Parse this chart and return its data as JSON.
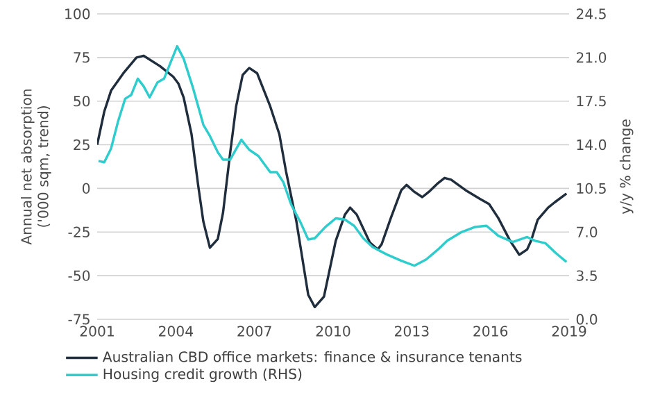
{
  "chart_data": {
    "type": "line",
    "ylabel": "Annual net absorption ('000 sqm, trend)",
    "y2label": "y/y % change",
    "xlim": [
      2001,
      2019
    ],
    "xticks": [
      2001,
      2004,
      2007,
      2010,
      2013,
      2016,
      2019
    ],
    "ylim": [
      -75,
      100
    ],
    "yticks": [
      -75,
      -50,
      -25,
      0,
      25,
      50,
      75,
      100
    ],
    "y2lim": [
      0,
      24.5
    ],
    "y2ticks": [
      {
        "value": 0,
        "label": "0.0"
      },
      {
        "value": 3.5,
        "label": "3.5"
      },
      {
        "value": 7,
        "label": "7.0"
      },
      {
        "value": 10.5,
        "label": "10.5"
      },
      {
        "value": 14,
        "label": "14.0"
      },
      {
        "value": 17.5,
        "label": "17.5"
      },
      {
        "value": 21,
        "label": "21.0"
      },
      {
        "value": 24.5,
        "label": "24.5"
      }
    ],
    "grid": "y",
    "legend": "bottom",
    "series": [
      {
        "name": "Australian CBD office markets: finance & insurance tenants",
        "color": "#1f2d3d",
        "x": [
          2001.0,
          2001.27,
          2001.53,
          2002.0,
          2002.5,
          2002.77,
          2003.4,
          2003.9,
          2004.1,
          2004.3,
          2004.6,
          2004.85,
          2005.05,
          2005.3,
          2005.6,
          2005.8,
          2006.07,
          2006.3,
          2006.55,
          2006.8,
          2007.1,
          2007.6,
          2007.95,
          2008.2,
          2008.6,
          2009.05,
          2009.3,
          2009.65,
          2010.1,
          2010.45,
          2010.65,
          2010.9,
          2011.15,
          2011.4,
          2011.7,
          2011.85,
          2012.2,
          2012.6,
          2012.8,
          2013.1,
          2013.4,
          2013.65,
          2014.0,
          2014.25,
          2014.5,
          2015.05,
          2015.6,
          2015.95,
          2016.3,
          2016.75,
          2017.1,
          2017.4,
          2017.55,
          2017.8,
          2018.2,
          2018.45,
          2018.9
        ],
        "values": [
          25,
          44,
          56,
          66,
          75,
          76,
          70,
          64,
          60,
          52,
          31,
          2,
          -19,
          -34,
          -29,
          -14,
          20,
          47,
          65,
          69,
          66,
          47,
          31,
          10,
          -19,
          -61,
          -68,
          -62,
          -30,
          -15,
          -11,
          -15,
          -23,
          -31,
          -35,
          -32,
          -17,
          -1,
          2,
          -2,
          -5,
          -2,
          3,
          6,
          5,
          -1,
          -6,
          -9,
          -17,
          -30,
          -38,
          -35,
          -30,
          -18,
          -11,
          -8,
          -3
        ]
      },
      {
        "name": "Housing credit growth (RHS)",
        "color": "#2ecccc",
        "axis": "y2",
        "x": [
          2001.05,
          2001.27,
          2001.53,
          2001.8,
          2002.07,
          2002.3,
          2002.55,
          2002.77,
          2003.0,
          2003.3,
          2003.55,
          2004.05,
          2004.3,
          2004.65,
          2005.05,
          2005.3,
          2005.6,
          2005.8,
          2006.07,
          2006.5,
          2006.8,
          2007.15,
          2007.6,
          2007.85,
          2008.1,
          2008.4,
          2008.75,
          2009.05,
          2009.3,
          2009.7,
          2010.1,
          2010.45,
          2010.8,
          2011.15,
          2011.5,
          2012.05,
          2012.6,
          2013.1,
          2013.55,
          2014.0,
          2014.35,
          2014.9,
          2015.4,
          2015.85,
          2016.3,
          2016.85,
          2017.4,
          2017.7,
          2018.1,
          2018.5,
          2018.9
        ],
        "values": [
          12.7,
          12.6,
          13.7,
          15.9,
          17.7,
          18.0,
          19.3,
          18.7,
          17.8,
          19.0,
          19.3,
          21.9,
          20.9,
          18.6,
          15.6,
          14.7,
          13.4,
          12.8,
          12.8,
          14.4,
          13.6,
          13.1,
          11.8,
          11.8,
          11.0,
          9.2,
          7.8,
          6.4,
          6.5,
          7.4,
          8.1,
          8.0,
          7.5,
          6.5,
          5.8,
          5.2,
          4.7,
          4.3,
          4.8,
          5.6,
          6.3,
          7.0,
          7.4,
          7.5,
          6.7,
          6.2,
          6.6,
          6.3,
          6.1,
          5.3,
          4.6
        ]
      }
    ]
  }
}
